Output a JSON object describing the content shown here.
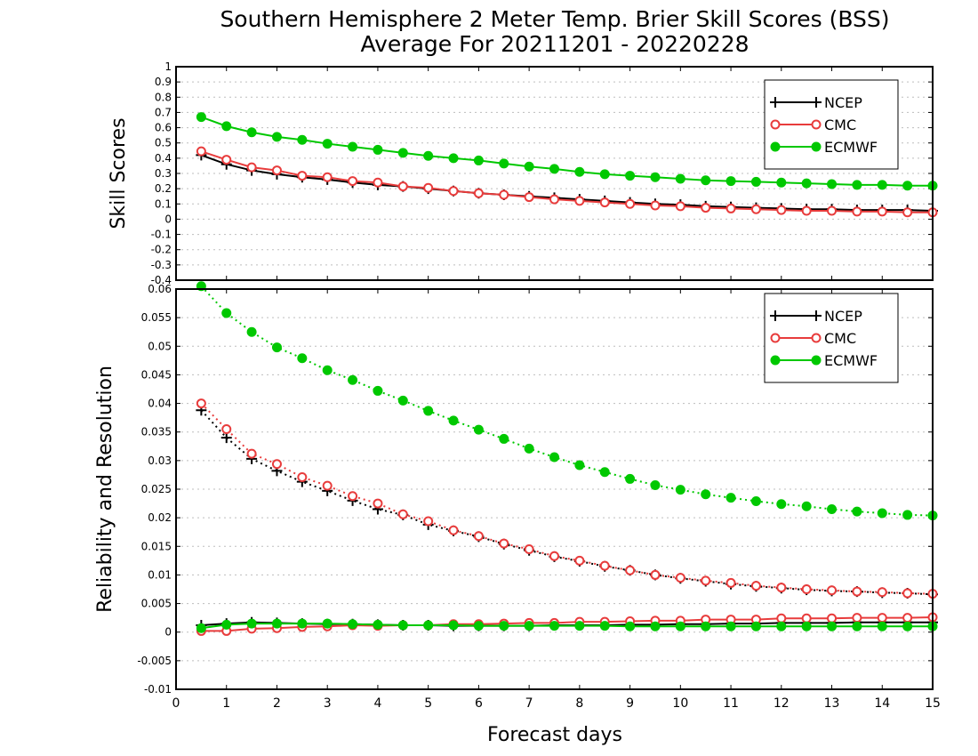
{
  "title": {
    "line1": "Southern Hemisphere 2 Meter Temp. Brier Skill Scores (BSS)",
    "line2": "Average For 20211201 - 20220228"
  },
  "xlabel": "Forecast days",
  "chart_data": [
    {
      "type": "line",
      "ylabel": "Skill Scores",
      "xlim": [
        0,
        15
      ],
      "ylim": [
        -0.4,
        1
      ],
      "xticks": [
        0,
        1,
        2,
        3,
        4,
        5,
        6,
        7,
        8,
        9,
        10,
        11,
        12,
        13,
        14,
        15
      ],
      "xtick_labels": [
        "0",
        "1",
        "2",
        "3",
        "4",
        "5",
        "6",
        "7",
        "8",
        "9",
        "10",
        "11",
        "12",
        "13",
        "14",
        "15"
      ],
      "yticks": [
        -0.4,
        -0.3,
        -0.2,
        -0.1,
        0,
        0.1,
        0.2,
        0.3,
        0.4,
        0.5,
        0.6,
        0.7,
        0.8,
        0.9,
        1
      ],
      "ytick_labels": [
        "-0.4",
        "-0.3",
        "-0.2",
        "-0.1",
        "0",
        "0.1",
        "0.2",
        "0.3",
        "0.4",
        "0.5",
        "0.6",
        "0.7",
        "0.8",
        "0.9",
        "1"
      ],
      "grid": true,
      "legend_position": "top-right",
      "x": [
        0.5,
        1,
        1.5,
        2,
        2.5,
        3,
        3.5,
        4,
        4.5,
        5,
        5.5,
        6,
        6.5,
        7,
        7.5,
        8,
        8.5,
        9,
        9.5,
        10,
        10.5,
        11,
        11.5,
        12,
        12.5,
        13,
        13.5,
        14,
        14.5,
        15
      ],
      "series": [
        {
          "name": "NCEP",
          "color": "#000000",
          "marker": "plus",
          "linestyle": "solid",
          "values": [
            0.42,
            0.36,
            0.32,
            0.295,
            0.275,
            0.26,
            0.24,
            0.225,
            0.215,
            0.2,
            0.185,
            0.17,
            0.16,
            0.15,
            0.14,
            0.13,
            0.12,
            0.11,
            0.1,
            0.095,
            0.085,
            0.08,
            0.075,
            0.07,
            0.065,
            0.065,
            0.06,
            0.06,
            0.06,
            0.055
          ]
        },
        {
          "name": "CMC",
          "color": "#e83c3c",
          "marker": "open-circle",
          "linestyle": "solid",
          "values": [
            0.445,
            0.39,
            0.34,
            0.32,
            0.285,
            0.275,
            0.25,
            0.24,
            0.215,
            0.205,
            0.185,
            0.17,
            0.16,
            0.145,
            0.13,
            0.12,
            0.11,
            0.1,
            0.09,
            0.085,
            0.075,
            0.07,
            0.065,
            0.06,
            0.055,
            0.055,
            0.05,
            0.05,
            0.045,
            0.045
          ]
        },
        {
          "name": "ECMWF",
          "color": "#00c800",
          "marker": "filled-circle",
          "linestyle": "solid",
          "values": [
            0.67,
            0.61,
            0.57,
            0.54,
            0.52,
            0.495,
            0.475,
            0.455,
            0.435,
            0.415,
            0.4,
            0.385,
            0.365,
            0.345,
            0.33,
            0.31,
            0.295,
            0.285,
            0.275,
            0.265,
            0.255,
            0.25,
            0.245,
            0.24,
            0.235,
            0.23,
            0.225,
            0.225,
            0.22,
            0.22
          ]
        }
      ]
    },
    {
      "type": "line",
      "ylabel": "Reliability and Resolution",
      "xlim": [
        0,
        15
      ],
      "ylim": [
        -0.01,
        0.06
      ],
      "xticks": [
        0,
        1,
        2,
        3,
        4,
        5,
        6,
        7,
        8,
        9,
        10,
        11,
        12,
        13,
        14,
        15
      ],
      "xtick_labels": [
        "0",
        "1",
        "2",
        "3",
        "4",
        "5",
        "6",
        "7",
        "8",
        "9",
        "10",
        "11",
        "12",
        "13",
        "14",
        "15"
      ],
      "yticks": [
        -0.01,
        -0.005,
        0,
        0.005,
        0.01,
        0.015,
        0.02,
        0.025,
        0.03,
        0.035,
        0.04,
        0.045,
        0.05,
        0.055,
        0.06
      ],
      "ytick_labels": [
        "-0.01",
        "-0.005",
        "0",
        "0.005",
        "0.01",
        "0.015",
        "0.02",
        "0.025",
        "0.03",
        "0.035",
        "0.04",
        "0.045",
        "0.05",
        "0.055",
        "0.06"
      ],
      "grid": true,
      "legend_position": "top-right",
      "x": [
        0.5,
        1,
        1.5,
        2,
        2.5,
        3,
        3.5,
        4,
        4.5,
        5,
        5.5,
        6,
        6.5,
        7,
        7.5,
        8,
        8.5,
        9,
        9.5,
        10,
        10.5,
        11,
        11.5,
        12,
        12.5,
        13,
        13.5,
        14,
        14.5,
        15
      ],
      "legend": [
        {
          "name": "NCEP",
          "color": "#000000",
          "marker": "plus"
        },
        {
          "name": "CMC",
          "color": "#e83c3c",
          "marker": "open-circle"
        },
        {
          "name": "ECMWF",
          "color": "#00c800",
          "marker": "filled-circle"
        }
      ],
      "series": [
        {
          "color": "#000000",
          "marker": "plus",
          "linestyle": "dotted",
          "values": [
            0.0388,
            0.034,
            0.0303,
            0.0282,
            0.0263,
            0.0247,
            0.023,
            0.0215,
            0.0205,
            0.0188,
            0.0177,
            0.0167,
            0.0154,
            0.0143,
            0.0132,
            0.0124,
            0.0115,
            0.0108,
            0.01,
            0.0094,
            0.0089,
            0.0084,
            0.008,
            0.0077,
            0.0074,
            0.0072,
            0.0071,
            0.0069,
            0.0068,
            0.0066
          ]
        },
        {
          "color": "#e83c3c",
          "marker": "open-circle",
          "linestyle": "dotted",
          "values": [
            0.04,
            0.0355,
            0.0312,
            0.0294,
            0.0271,
            0.0256,
            0.0238,
            0.0225,
            0.0206,
            0.0194,
            0.0178,
            0.0168,
            0.0155,
            0.0145,
            0.0133,
            0.0125,
            0.0116,
            0.0108,
            0.01,
            0.0095,
            0.009,
            0.0086,
            0.0081,
            0.0078,
            0.0075,
            0.0073,
            0.0071,
            0.007,
            0.0068,
            0.0067
          ]
        },
        {
          "color": "#00c800",
          "marker": "filled-circle",
          "linestyle": "dotted",
          "values": [
            0.0605,
            0.0558,
            0.0525,
            0.0498,
            0.0479,
            0.0458,
            0.0441,
            0.0422,
            0.0405,
            0.0387,
            0.037,
            0.0354,
            0.0338,
            0.0321,
            0.0306,
            0.0292,
            0.028,
            0.0268,
            0.0257,
            0.0249,
            0.0241,
            0.0235,
            0.0229,
            0.0224,
            0.022,
            0.0215,
            0.0211,
            0.0208,
            0.0205,
            0.0204
          ]
        },
        {
          "color": "#000000",
          "marker": "plus",
          "linestyle": "solid",
          "values": [
            0.0012,
            0.0015,
            0.0017,
            0.0016,
            0.0015,
            0.0014,
            0.0014,
            0.0013,
            0.0012,
            0.0012,
            0.0011,
            0.0011,
            0.0011,
            0.0011,
            0.0012,
            0.0012,
            0.0012,
            0.0013,
            0.0013,
            0.0014,
            0.0014,
            0.0015,
            0.0015,
            0.0016,
            0.0016,
            0.0016,
            0.0017,
            0.0017,
            0.0017,
            0.0017
          ]
        },
        {
          "color": "#e83c3c",
          "marker": "open-circle",
          "linestyle": "solid",
          "values": [
            0.0002,
            0.0002,
            0.0006,
            0.0007,
            0.0009,
            0.001,
            0.0012,
            0.0011,
            0.0012,
            0.0012,
            0.0014,
            0.0014,
            0.0015,
            0.0016,
            0.0016,
            0.0018,
            0.0018,
            0.0019,
            0.002,
            0.002,
            0.0022,
            0.0022,
            0.0022,
            0.0024,
            0.0024,
            0.0024,
            0.0025,
            0.0025,
            0.0025,
            0.0026
          ]
        },
        {
          "color": "#00c800",
          "marker": "filled-circle",
          "linestyle": "solid",
          "values": [
            0.0007,
            0.0013,
            0.0015,
            0.0015,
            0.0015,
            0.0015,
            0.0014,
            0.0013,
            0.0012,
            0.0012,
            0.0012,
            0.0011,
            0.0011,
            0.0011,
            0.0011,
            0.0011,
            0.0011,
            0.001,
            0.001,
            0.001,
            0.001,
            0.001,
            0.001,
            0.001,
            0.001,
            0.001,
            0.001,
            0.001,
            0.001,
            0.001
          ]
        }
      ]
    }
  ]
}
